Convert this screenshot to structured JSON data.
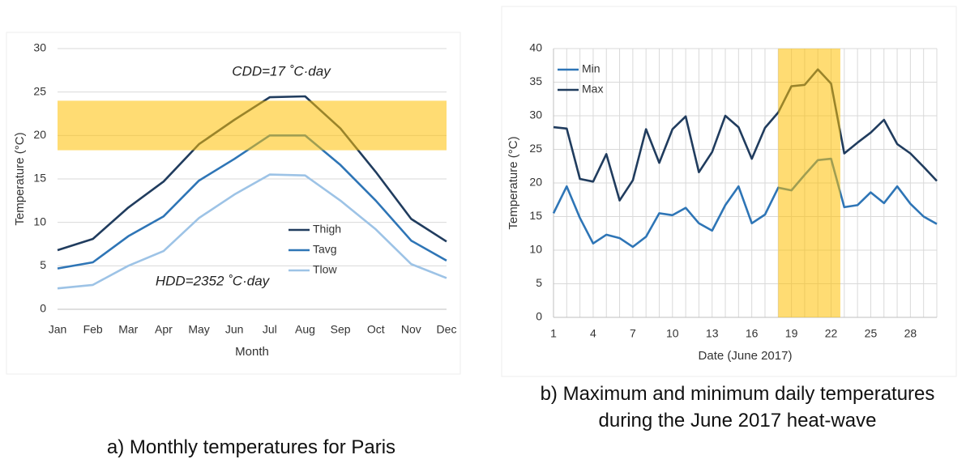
{
  "chart_data": [
    {
      "type": "line",
      "caption": "a) Monthly temperatures for Paris",
      "xlabel": "Month",
      "ylabel": "Temperature (°C)",
      "categories": [
        "Jan",
        "Feb",
        "Mar",
        "Apr",
        "May",
        "Jun",
        "Jul",
        "Aug",
        "Sep",
        "Oct",
        "Nov",
        "Dec"
      ],
      "series": [
        {
          "name": "Thigh",
          "color": "#203c5e",
          "values": [
            6.8,
            8.1,
            11.7,
            14.7,
            19.0,
            21.8,
            24.4,
            24.5,
            20.8,
            15.8,
            10.4,
            7.8
          ]
        },
        {
          "name": "Tavg",
          "color": "#2e75b6",
          "values": [
            4.7,
            5.4,
            8.4,
            10.7,
            14.8,
            17.3,
            20.0,
            20.0,
            16.6,
            12.5,
            7.9,
            5.6
          ]
        },
        {
          "name": "Tlow",
          "color": "#9dc3e6",
          "values": [
            2.4,
            2.8,
            5.0,
            6.7,
            10.5,
            13.2,
            15.5,
            15.4,
            12.5,
            9.2,
            5.2,
            3.6
          ]
        }
      ],
      "annotations": [
        "CDD=17 ˚C·day",
        "HDD=2352 ˚C·day"
      ],
      "yband": [
        18.3,
        24
      ],
      "ylim": [
        0,
        30
      ],
      "yticks": [
        0,
        5,
        10,
        15,
        20,
        25,
        30
      ],
      "grid": true,
      "legend": "lower right"
    },
    {
      "type": "line",
      "caption": "b) Maximum and minimum daily temperatures during the June 2017 heat-wave",
      "xlabel": "Date (June 2017)",
      "ylabel": "Temperature (°C)",
      "x": [
        1,
        2,
        3,
        4,
        5,
        6,
        7,
        8,
        9,
        10,
        11,
        12,
        13,
        14,
        15,
        16,
        17,
        18,
        19,
        20,
        21,
        22,
        23,
        24,
        25,
        26,
        27,
        28,
        29,
        30
      ],
      "series": [
        {
          "name": "Min",
          "color": "#2e75b6",
          "values": [
            15.5,
            19.5,
            14.8,
            11.0,
            12.3,
            11.8,
            10.5,
            12.0,
            15.5,
            15.2,
            16.3,
            14.0,
            12.9,
            16.7,
            19.5,
            14.0,
            15.3,
            19.3,
            18.9,
            21.2,
            23.4,
            23.6,
            16.4,
            16.7,
            18.6,
            17.0,
            19.5,
            16.9,
            15.0,
            13.9
          ]
        },
        {
          "name": "Max",
          "color": "#203c5e",
          "values": [
            28.3,
            28.1,
            20.6,
            20.2,
            24.3,
            17.4,
            20.4,
            28.0,
            23.0,
            28.0,
            29.9,
            21.6,
            24.6,
            30.0,
            28.3,
            23.6,
            28.2,
            30.5,
            34.4,
            34.6,
            36.9,
            34.8,
            24.4,
            26.0,
            27.5,
            29.4,
            25.8,
            24.4,
            22.4,
            20.3
          ]
        }
      ],
      "xband": [
        18,
        22.7
      ],
      "xlim": [
        1,
        30
      ],
      "xticks": [
        1,
        4,
        7,
        10,
        13,
        16,
        19,
        22,
        25,
        28
      ],
      "ylim": [
        0,
        40
      ],
      "yticks": [
        0,
        5,
        10,
        15,
        20,
        25,
        30,
        35,
        40
      ],
      "grid": true,
      "xgrid": true,
      "legend": "upper left"
    }
  ]
}
